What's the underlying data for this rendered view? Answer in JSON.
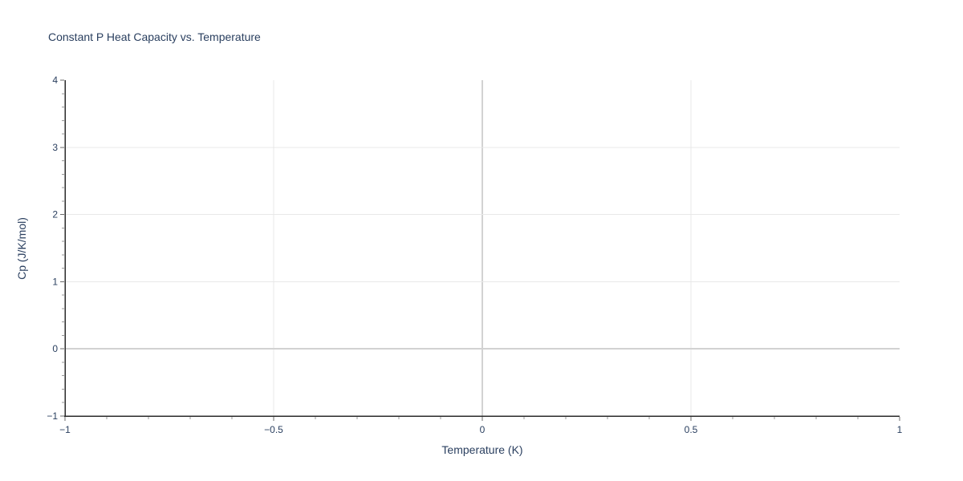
{
  "chart_data": {
    "type": "line",
    "title": "Constant P Heat Capacity vs. Temperature",
    "xlabel": "Temperature (K)",
    "ylabel": "Cp (J/K/mol)",
    "xlim": [
      -1,
      1
    ],
    "ylim": [
      -1,
      4
    ],
    "xticks": [
      -1,
      -0.5,
      0,
      0.5,
      1
    ],
    "yticks": [
      -1,
      0,
      1,
      2,
      3,
      4
    ],
    "x_minor_step": 0.1,
    "y_minor_step": 0.2,
    "grid": true,
    "zeroline": true,
    "legend": false,
    "series": [],
    "note": "empty plot - no data series rendered",
    "colors": {
      "text": "#2a3f5f",
      "grid": "#e8e8e8",
      "zeroline": "#d2d2d2",
      "axis_line": "#2b2b2b",
      "major_tick": "#6b6b6b",
      "minor_tick": "#9a9a9a",
      "background": "#ffffff"
    }
  }
}
